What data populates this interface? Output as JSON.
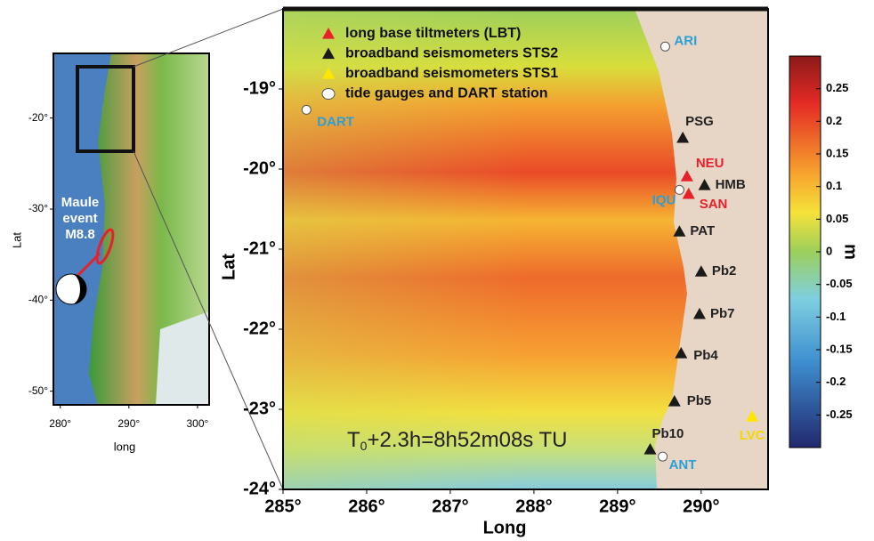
{
  "main_map": {
    "xlabel": "Long",
    "ylabel": "Lat",
    "xlim": [
      285,
      290.8
    ],
    "ylim": [
      -24,
      -18
    ],
    "xticks": [
      {
        "value": 285,
        "label": "285°"
      },
      {
        "value": 286,
        "label": "286°"
      },
      {
        "value": 287,
        "label": "287°"
      },
      {
        "value": 288,
        "label": "288°"
      },
      {
        "value": 289,
        "label": "289°"
      },
      {
        "value": 290,
        "label": "290°"
      }
    ],
    "yticks": [
      {
        "value": -19,
        "label": "-19°"
      },
      {
        "value": -20,
        "label": "-20°"
      },
      {
        "value": -21,
        "label": "-21°"
      },
      {
        "value": -22,
        "label": "-22°"
      },
      {
        "value": -23,
        "label": "-23°"
      },
      {
        "value": -24,
        "label": "-24°"
      }
    ],
    "legend": [
      {
        "label": "long base tiltmeters (LBT)",
        "color": "#e8202a",
        "marker": "triangle",
        "station_label_color": "#e8202a"
      },
      {
        "label": "broadband seismometers STS2",
        "color": "#1a1a1a",
        "marker": "triangle",
        "station_label_color": "#222222"
      },
      {
        "label": "broadband seismometers STS1",
        "color": "#ffe600",
        "marker": "triangle",
        "station_label_color": "#f2d800"
      },
      {
        "label": "tide gauges and DART station",
        "color": "#ffffff",
        "marker": "circle",
        "station_label_color": "#2a9fd8"
      }
    ],
    "stations": [
      {
        "name": "ARI",
        "lon": 289.57,
        "lat": -18.47,
        "kind": 3
      },
      {
        "name": "DART",
        "lon": 285.28,
        "lat": -19.26,
        "kind": 3
      },
      {
        "name": "PSG",
        "lon": 289.78,
        "lat": -19.61,
        "kind": 1
      },
      {
        "name": "NEU",
        "lon": 289.83,
        "lat": -20.09,
        "kind": 0
      },
      {
        "name": "SAN",
        "lon": 289.85,
        "lat": -20.31,
        "kind": 0
      },
      {
        "name": "IQU",
        "lon": 289.74,
        "lat": -20.26,
        "kind": 3
      },
      {
        "name": "HMB",
        "lon": 290.04,
        "lat": -20.2,
        "kind": 1
      },
      {
        "name": "PAT",
        "lon": 289.74,
        "lat": -20.78,
        "kind": 1
      },
      {
        "name": "Pb2",
        "lon": 290.0,
        "lat": -21.28,
        "kind": 1
      },
      {
        "name": "Pb7",
        "lon": 289.98,
        "lat": -21.81,
        "kind": 1
      },
      {
        "name": "Pb4",
        "lon": 289.76,
        "lat": -22.3,
        "kind": 1
      },
      {
        "name": "Pb5",
        "lon": 289.68,
        "lat": -22.9,
        "kind": 1
      },
      {
        "name": "LVC",
        "lon": 290.61,
        "lat": -23.09,
        "kind": 2
      },
      {
        "name": "Pb10",
        "lon": 289.39,
        "lat": -23.5,
        "kind": 1
      },
      {
        "name": "ANT",
        "lon": 289.54,
        "lat": -23.59,
        "kind": 3
      }
    ],
    "annotation": {
      "base": "T",
      "subscript": "0",
      "rest": "+2.3h=8h52m08s TU"
    },
    "colorbar": {
      "label": "m",
      "lim": [
        -0.3,
        0.3
      ],
      "ticks": [
        0.25,
        0.2,
        0.15,
        0.1,
        0.05,
        0,
        -0.05,
        -0.1,
        -0.15,
        -0.2,
        -0.25
      ]
    }
  },
  "inset_map": {
    "xlabel": "long",
    "ylabel": "Lat",
    "xlim": [
      279,
      301.7
    ],
    "ylim": [
      -51.5,
      -12.9
    ],
    "xticks": [
      {
        "value": 280,
        "label": "280°"
      },
      {
        "value": 290,
        "label": "290°"
      },
      {
        "value": 300,
        "label": "300°"
      }
    ],
    "yticks": [
      {
        "value": -20,
        "label": "-20°"
      },
      {
        "value": -30,
        "label": "-30°"
      },
      {
        "value": -40,
        "label": "-40°"
      },
      {
        "value": -50,
        "label": "-50°"
      }
    ],
    "event_label": [
      "Maule",
      "event",
      "M8.8"
    ]
  }
}
